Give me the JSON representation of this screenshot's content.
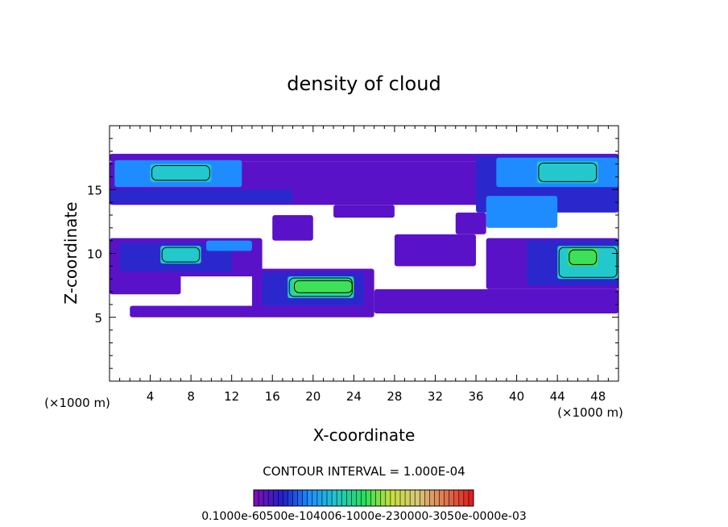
{
  "chart_data": {
    "type": "heatmap",
    "title": "density of cloud",
    "xlabel": "X-coordinate",
    "ylabel": "Z-coordinate",
    "x_unit": "(×1000 m)",
    "y_unit": "(×1000 m)",
    "xlim": [
      0,
      50
    ],
    "ylim": [
      0,
      20
    ],
    "x_ticks": [
      4,
      8,
      12,
      16,
      20,
      24,
      28,
      32,
      36,
      40,
      44,
      48
    ],
    "y_ticks": [
      5,
      10,
      15
    ],
    "contour_interval": "CONTOUR INTERVAL = 1.000E-04",
    "colorbar_labels": "0.1000e-60500e-104006-1000e-230000-3050e-0000e-03",
    "colorbar_colors": [
      "#7a0fb8",
      "#2020c8",
      "#1e90ff",
      "#22c8c8",
      "#22e05a",
      "#c8e03c",
      "#d8c878",
      "#e07a50",
      "#e02020"
    ],
    "grid": false,
    "legend": "colorbar-bottom",
    "cells": [
      {
        "x": [
          0,
          50
        ],
        "z": [
          17.2,
          17.8
        ],
        "level": 1
      },
      {
        "x": [
          0,
          50
        ],
        "z": [
          13.8,
          17.2
        ],
        "level": 1
      },
      {
        "x": [
          0.5,
          13
        ],
        "z": [
          15.2,
          17.3
        ],
        "level": 3
      },
      {
        "x": [
          4,
          10
        ],
        "z": [
          15.6,
          17.0
        ],
        "level": 4
      },
      {
        "x": [
          0,
          18
        ],
        "z": [
          13.9,
          15.0
        ],
        "level": 2
      },
      {
        "x": [
          36,
          50
        ],
        "z": [
          13.2,
          17.6
        ],
        "level": 2
      },
      {
        "x": [
          38,
          50
        ],
        "z": [
          15.2,
          17.5
        ],
        "level": 3
      },
      {
        "x": [
          42,
          48
        ],
        "z": [
          15.5,
          17.2
        ],
        "level": 4
      },
      {
        "x": [
          37,
          44
        ],
        "z": [
          12.0,
          14.5
        ],
        "level": 3
      },
      {
        "x": [
          0,
          15
        ],
        "z": [
          8.2,
          11.2
        ],
        "level": 1
      },
      {
        "x": [
          1,
          12
        ],
        "z": [
          8.5,
          10.8
        ],
        "level": 2
      },
      {
        "x": [
          5,
          9
        ],
        "z": [
          9.2,
          10.6
        ],
        "level": 4
      },
      {
        "x": [
          9.5,
          14
        ],
        "z": [
          10.2,
          11.0
        ],
        "level": 3
      },
      {
        "x": [
          0,
          7
        ],
        "z": [
          6.8,
          8.6
        ],
        "level": 1
      },
      {
        "x": [
          14,
          26
        ],
        "z": [
          5.2,
          8.8
        ],
        "level": 1
      },
      {
        "x": [
          15,
          25
        ],
        "z": [
          5.8,
          8.5
        ],
        "level": 2
      },
      {
        "x": [
          17.5,
          24
        ],
        "z": [
          6.5,
          8.2
        ],
        "level": 4
      },
      {
        "x": [
          18,
          24
        ],
        "z": [
          6.8,
          8.0
        ],
        "level": 5
      },
      {
        "x": [
          37,
          50
        ],
        "z": [
          7.2,
          11.2
        ],
        "level": 1
      },
      {
        "x": [
          41,
          50
        ],
        "z": [
          7.5,
          11.0
        ],
        "level": 2
      },
      {
        "x": [
          44,
          50
        ],
        "z": [
          8.0,
          10.6
        ],
        "level": 4
      },
      {
        "x": [
          45,
          48
        ],
        "z": [
          9.0,
          10.4
        ],
        "level": 5
      },
      {
        "x": [
          26,
          50
        ],
        "z": [
          5.3,
          7.2
        ],
        "level": 1
      },
      {
        "x": [
          2,
          26
        ],
        "z": [
          5.0,
          5.9
        ],
        "level": 1
      },
      {
        "x": [
          28,
          36
        ],
        "z": [
          9.0,
          11.5
        ],
        "level": 1
      },
      {
        "x": [
          34,
          37
        ],
        "z": [
          11.5,
          13.2
        ],
        "level": 1
      },
      {
        "x": [
          16,
          20
        ],
        "z": [
          11.0,
          13.0
        ],
        "level": 1
      },
      {
        "x": [
          22,
          28
        ],
        "z": [
          12.8,
          13.8
        ],
        "level": 1
      }
    ]
  }
}
